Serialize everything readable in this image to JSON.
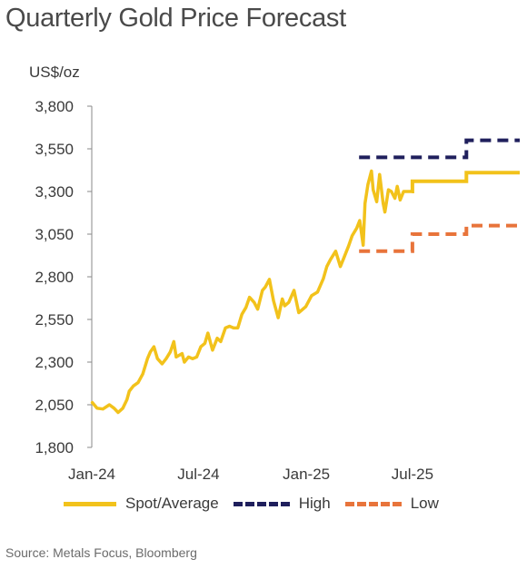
{
  "chart_data": {
    "type": "line",
    "title": "Quarterly Gold Price Forecast",
    "ylabel": "US$/oz",
    "source": "Source: Metals Focus, Bloomberg",
    "ylim": [
      1800,
      3800
    ],
    "yticks": [
      1800,
      2050,
      2300,
      2550,
      2800,
      3050,
      3300,
      3550,
      3800
    ],
    "ytick_labels": [
      "1,800",
      "2,050",
      "2,300",
      "2,550",
      "2,800",
      "3,050",
      "3,300",
      "3,550",
      "3,800"
    ],
    "x_tick_labels": [
      "Jan-24",
      "Jul-24",
      "Jan-25",
      "Jul-25"
    ],
    "x_tick_dates": [
      "2024-01-01",
      "2024-07-01",
      "2025-01-01",
      "2025-07-01"
    ],
    "xlim": [
      "2024-01-01",
      "2025-12-31"
    ],
    "grid": false,
    "legend_position": "bottom",
    "series": [
      {
        "name": "Spot/Average",
        "color": "#F2C21B",
        "style": "solid",
        "points": [
          [
            "2024-01-02",
            2063
          ],
          [
            "2024-01-10",
            2030
          ],
          [
            "2024-01-20",
            2025
          ],
          [
            "2024-01-31",
            2050
          ],
          [
            "2024-02-08",
            2030
          ],
          [
            "2024-02-15",
            2005
          ],
          [
            "2024-02-23",
            2030
          ],
          [
            "2024-03-01",
            2080
          ],
          [
            "2024-03-05",
            2130
          ],
          [
            "2024-03-12",
            2160
          ],
          [
            "2024-03-20",
            2180
          ],
          [
            "2024-03-28",
            2230
          ],
          [
            "2024-04-05",
            2320
          ],
          [
            "2024-04-10",
            2360
          ],
          [
            "2024-04-16",
            2390
          ],
          [
            "2024-04-22",
            2320
          ],
          [
            "2024-04-30",
            2290
          ],
          [
            "2024-05-07",
            2320
          ],
          [
            "2024-05-14",
            2360
          ],
          [
            "2024-05-20",
            2420
          ],
          [
            "2024-05-24",
            2330
          ],
          [
            "2024-06-03",
            2350
          ],
          [
            "2024-06-07",
            2300
          ],
          [
            "2024-06-14",
            2330
          ],
          [
            "2024-06-21",
            2320
          ],
          [
            "2024-06-28",
            2330
          ],
          [
            "2024-07-05",
            2390
          ],
          [
            "2024-07-12",
            2410
          ],
          [
            "2024-07-17",
            2470
          ],
          [
            "2024-07-25",
            2370
          ],
          [
            "2024-08-02",
            2440
          ],
          [
            "2024-08-08",
            2420
          ],
          [
            "2024-08-16",
            2500
          ],
          [
            "2024-08-23",
            2510
          ],
          [
            "2024-08-30",
            2500
          ],
          [
            "2024-09-06",
            2500
          ],
          [
            "2024-09-13",
            2580
          ],
          [
            "2024-09-20",
            2620
          ],
          [
            "2024-09-26",
            2680
          ],
          [
            "2024-10-04",
            2650
          ],
          [
            "2024-10-10",
            2610
          ],
          [
            "2024-10-18",
            2720
          ],
          [
            "2024-10-23",
            2740
          ],
          [
            "2024-10-30",
            2785
          ],
          [
            "2024-11-06",
            2660
          ],
          [
            "2024-11-14",
            2560
          ],
          [
            "2024-11-21",
            2670
          ],
          [
            "2024-11-25",
            2630
          ],
          [
            "2024-12-02",
            2650
          ],
          [
            "2024-12-11",
            2720
          ],
          [
            "2024-12-19",
            2590
          ],
          [
            "2024-12-31",
            2625
          ],
          [
            "2025-01-10",
            2690
          ],
          [
            "2025-01-20",
            2710
          ],
          [
            "2025-01-30",
            2790
          ],
          [
            "2025-02-05",
            2860
          ],
          [
            "2025-02-11",
            2900
          ],
          [
            "2025-02-20",
            2950
          ],
          [
            "2025-02-28",
            2860
          ],
          [
            "2025-03-06",
            2910
          ],
          [
            "2025-03-14",
            2980
          ],
          [
            "2025-03-20",
            3040
          ],
          [
            "2025-03-28",
            3085
          ],
          [
            "2025-04-02",
            3130
          ],
          [
            "2025-04-08",
            2985
          ],
          [
            "2025-04-11",
            3230
          ],
          [
            "2025-04-16",
            3340
          ],
          [
            "2025-04-22",
            3420
          ],
          [
            "2025-04-25",
            3310
          ],
          [
            "2025-05-01",
            3240
          ],
          [
            "2025-05-06",
            3400
          ],
          [
            "2025-05-12",
            3230
          ],
          [
            "2025-05-15",
            3180
          ],
          [
            "2025-05-21",
            3310
          ],
          [
            "2025-05-26",
            3300
          ],
          [
            "2025-06-01",
            3260
          ],
          [
            "2025-06-05",
            3330
          ],
          [
            "2025-06-10",
            3250
          ],
          [
            "2025-06-16",
            3300
          ],
          [
            "2025-06-24",
            3300
          ],
          [
            "2025-06-30",
            3300
          ]
        ],
        "steps": [
          {
            "from": "2025-06-30",
            "to": "2025-07-01",
            "value": 3300
          },
          {
            "from": "2025-07-01",
            "to": "2025-10-01",
            "value": 3360
          },
          {
            "from": "2025-10-01",
            "to": "2025-12-31",
            "value": 3410
          }
        ]
      },
      {
        "name": "High",
        "color": "#1F1F5C",
        "style": "dashed",
        "steps": [
          {
            "from": "2025-04-01",
            "to": "2025-07-01",
            "value": 3500
          },
          {
            "from": "2025-07-01",
            "to": "2025-10-01",
            "value": 3500
          },
          {
            "from": "2025-10-01",
            "to": "2025-12-31",
            "value": 3600
          }
        ]
      },
      {
        "name": "Low",
        "color": "#E8743B",
        "style": "dashed",
        "steps": [
          {
            "from": "2025-04-01",
            "to": "2025-07-01",
            "value": 2950
          },
          {
            "from": "2025-07-01",
            "to": "2025-10-01",
            "value": 3050
          },
          {
            "from": "2025-10-01",
            "to": "2025-12-31",
            "value": 3100
          }
        ]
      }
    ]
  }
}
